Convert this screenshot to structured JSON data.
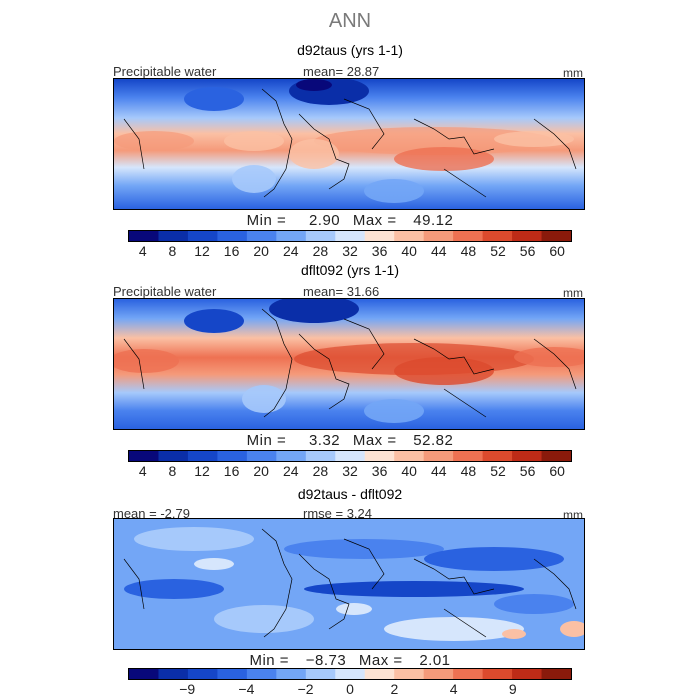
{
  "title": "ANN",
  "colors": {
    "seq": [
      "#08087a",
      "#0a2ea8",
      "#1546c8",
      "#2a62e0",
      "#4a82ee",
      "#73a6f6",
      "#a6c9fb",
      "#d6e6fc",
      "#fde3d3",
      "#fbc0a4",
      "#f59a7a",
      "#ee7152",
      "#dc4a2d",
      "#be2b17",
      "#8a1a0b"
    ],
    "diff": [
      "#08087a",
      "#0a2ea8",
      "#1546c8",
      "#2a62e0",
      "#4a82ee",
      "#73a6f6",
      "#a6c9fb",
      "#d6e6fc",
      "#fde3d3",
      "#fbc0a4",
      "#f59a7a",
      "#ee7152",
      "#dc4a2d",
      "#be2b17",
      "#8a1a0b"
    ]
  },
  "panels": [
    {
      "title": "d92taus (yrs 1-1)",
      "var_label": "Precipitable water",
      "stat": "mean=  28.87",
      "units": "mm",
      "min_label": "Min =",
      "min_value": "2.90",
      "max_label": "Max =",
      "max_value": "49.12",
      "ticks": [
        "4",
        "8",
        "12",
        "16",
        "20",
        "24",
        "28",
        "32",
        "36",
        "40",
        "44",
        "48",
        "52",
        "56",
        "60"
      ]
    },
    {
      "title": "dflt092 (yrs 1-1)",
      "var_label": "Precipitable water",
      "stat": "mean=  31.66",
      "units": "mm",
      "min_label": "Min =",
      "min_value": "3.32",
      "max_label": "Max =",
      "max_value": "52.82",
      "ticks": [
        "4",
        "8",
        "12",
        "16",
        "20",
        "24",
        "28",
        "32",
        "36",
        "40",
        "44",
        "48",
        "52",
        "56",
        "60"
      ]
    },
    {
      "title": "d92taus - dflt092",
      "left_stat": "mean =  -2.79",
      "right_stat": "rmse =   3.24",
      "units": "mm",
      "min_label": "Min =",
      "min_value": "−8.73",
      "max_label": "Max =",
      "max_value": "2.01",
      "ticks": [
        "−9",
        "−4",
        "−2",
        "0",
        "2",
        "4",
        "9"
      ]
    }
  ]
}
